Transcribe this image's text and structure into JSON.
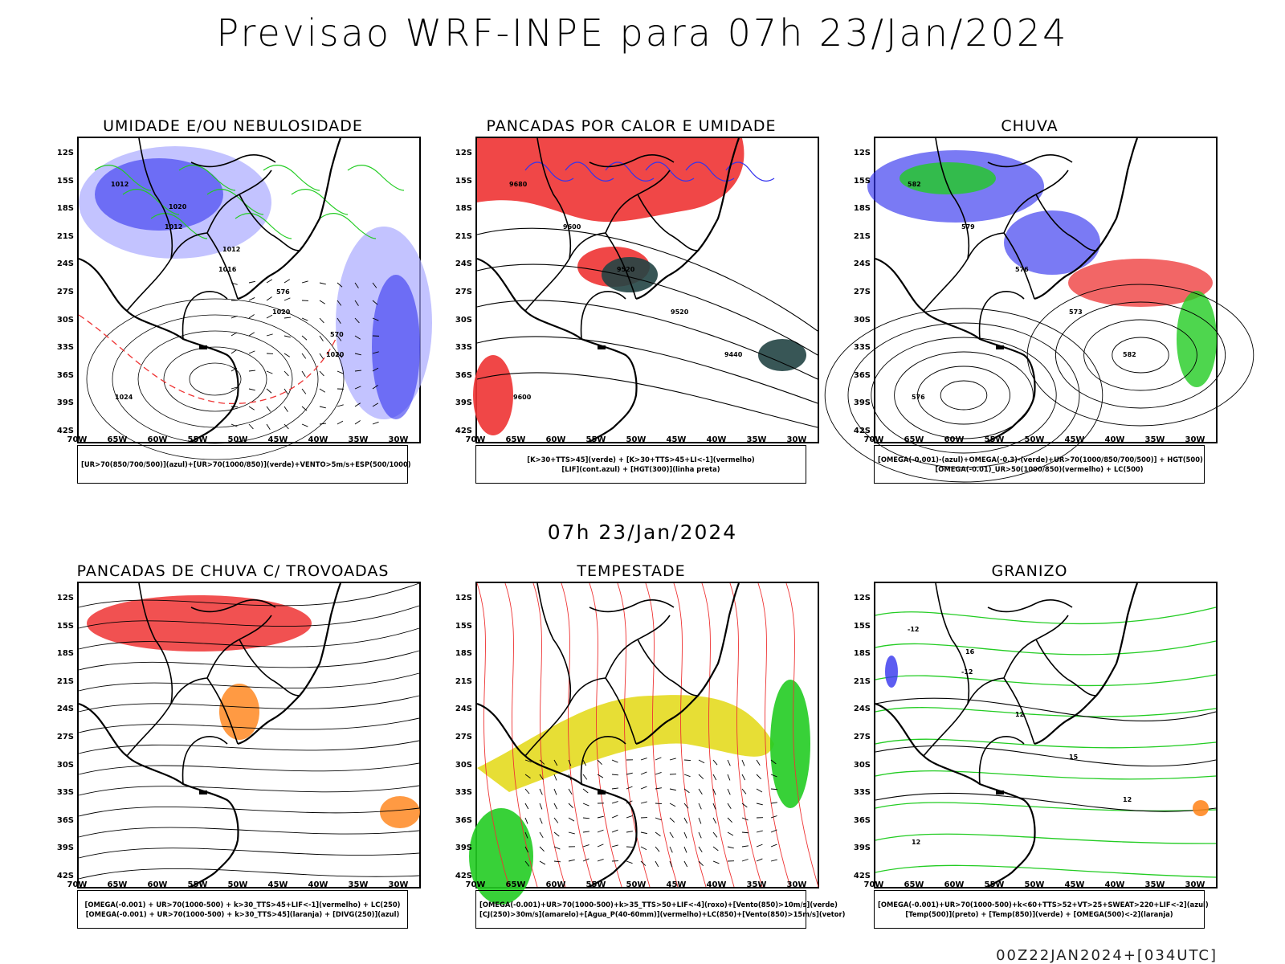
{
  "header": {
    "title": "Previsao WRF-INPE  para 07h 23/Jan/2024",
    "mid_time": "07h 23/Jan/2024",
    "run_label": "00Z22JAN2024+[034UTC]"
  },
  "axes": {
    "latitudes": [
      "12S",
      "15S",
      "18S",
      "21S",
      "24S",
      "27S",
      "30S",
      "33S",
      "36S",
      "39S",
      "42S"
    ],
    "longitudes": [
      "70W",
      "65W",
      "60W",
      "55W",
      "50W",
      "45W",
      "40W",
      "35W",
      "30W"
    ]
  },
  "colors": {
    "red": "#ee3333",
    "blue": "#3333ee",
    "light_blue": "#aaaaff",
    "green": "#22cc22",
    "dark_teal": "#224444",
    "yellow": "#e6dc2a",
    "orange": "#ff8822",
    "black": "#000000"
  },
  "panels": [
    {
      "id": "umidade",
      "title": "UMIDADE E/OU NEBULOSIDADE",
      "legend": [
        "[UR>70(850/700/500)](azul)+[UR>70(1000/850)](verde)+VENTO>5m/s+ESP(500/1000)"
      ],
      "contour_labels": [
        "1012",
        "1012",
        "1016",
        "1020",
        "1020",
        "1024",
        "1020",
        "1012",
        "576",
        "570"
      ]
    },
    {
      "id": "pancadas-calor",
      "title": "PANCADAS POR CALOR E UMIDADE",
      "legend": [
        "[K>30+TTS>45](verde) + [K>30+TTS>45+LI<-1](vermelho)",
        "[LIF](cont.azul) + [HGT(300)](linha preta)"
      ],
      "contour_labels": [
        "9680",
        "9600",
        "9520",
        "9520",
        "9440",
        "9600"
      ]
    },
    {
      "id": "chuva",
      "title": "CHUVA",
      "legend": [
        "[OMEGA(-0.001)-(azul)+OMEGA(-0.3)-(verde)+UR>70(1000/850/700/500)] + HGT(500)",
        "[OMEGA(-0.01)_UR>50(1000/850)(vermelho) + LC(500)"
      ],
      "contour_labels": [
        "582",
        "579",
        "576",
        "573",
        "582",
        "576"
      ]
    },
    {
      "id": "trovoadas",
      "title": "PANCADAS DE CHUVA C/ TROVOADAS",
      "legend": [
        "[OMEGA(-0.001) + UR>70(1000-500) + k>30_TTS>45+LIF<-1](vermelho) + LC(250)",
        "[OMEGA(-0.001) + UR>70(1000-500) + k>30_TTS>45](laranja) + [DIVG(250)](azul)"
      ],
      "contour_labels": []
    },
    {
      "id": "tempestade",
      "title": "TEMPESTADE",
      "legend": [
        "[OMEGA(-0.001)+UR>70(1000-500)+k>35_TTS>50+LIF<-4](roxo)+[Vento(850)>10m/s](verde)",
        "[CJ(250)>30m/s](amarelo)+[Agua_P(40-60mm)](vermelho)+LC(850)+[Vento(850)>15m/s](vetor)"
      ],
      "contour_labels": []
    },
    {
      "id": "granizo",
      "title": "GRANIZO",
      "legend": [
        "[OMEGA(-0.001)+UR>70(1000-500)+k<60+TTS>52+VT>25+SWEAT>220+LIF<-2](azul)",
        "[Temp(500)](preto) + [Temp(850)](verde) + [OMEGA(500)<-2](laranja)"
      ],
      "contour_labels": [
        "-12",
        "-12",
        "12",
        "15",
        "12",
        "12",
        "16"
      ]
    }
  ]
}
